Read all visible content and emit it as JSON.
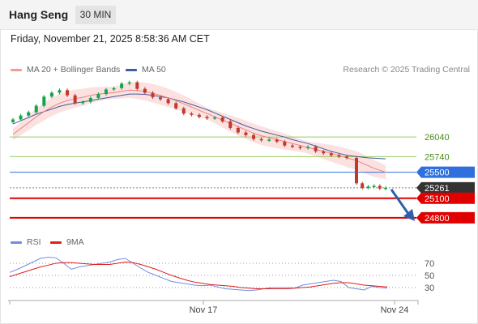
{
  "header": {
    "title": "Hang Seng",
    "timeframe": "30 MIN"
  },
  "timestamp": "Friday, November 21, 2025 8:58:36 AM CET",
  "legend": {
    "ma20_bb": "MA 20 + Bollinger Bands",
    "ma50": "MA 50",
    "rsi": "RSI",
    "ma9": "9MA"
  },
  "credit": "Research © 2025 Trading Central",
  "colors": {
    "up_candle": "#16a34a",
    "down_candle": "#c0392b",
    "bollinger_fill": "#fbd9d9",
    "ma20": "#f08080",
    "ma50": "#3f5e9c",
    "resistance_green": "#9acd66",
    "level_blue": "#2f6fde",
    "support_red": "#e00000",
    "price_label": "#333333",
    "rsi_line": "#6d8fe0",
    "rsi_ma": "#e11d1d",
    "arrow": "#2f5fa8"
  },
  "chart_data": [
    {
      "type": "candlestick",
      "title": "Hang Seng",
      "x_ticks": [
        "Nov 17",
        "Nov 24"
      ],
      "ylim": [
        24600,
        26950
      ],
      "levels": [
        {
          "value": 26040,
          "label": "26040",
          "style": "resistance"
        },
        {
          "value": 25740,
          "label": "25740",
          "style": "resistance"
        },
        {
          "value": 25500,
          "label": "25500",
          "style": "pivot"
        },
        {
          "value": 25261,
          "label": "25261",
          "style": "last_price"
        },
        {
          "value": 25100,
          "label": "25100",
          "style": "support"
        },
        {
          "value": 24800,
          "label": "24800",
          "style": "support"
        }
      ],
      "forecast_arrow": {
        "from": 25261,
        "to": 24900
      },
      "series": [
        {
          "name": "Hang Seng",
          "values": [
            26310,
            26370,
            26420,
            26520,
            26660,
            26720,
            26760,
            26680,
            26560,
            26580,
            26640,
            26700,
            26770,
            26790,
            26860,
            26880,
            26780,
            26720,
            26650,
            26620,
            26560,
            26480,
            26400,
            26380,
            26350,
            26330,
            26340,
            26280,
            26180,
            26110,
            26070,
            26010,
            25990,
            26000,
            25970,
            25910,
            25890,
            25870,
            25890,
            25820,
            25790,
            25760,
            25740,
            25720,
            25330,
            25260,
            25280,
            25290,
            25250,
            25261
          ]
        },
        {
          "name": "MA 20",
          "values": [
            26080,
            26170,
            26260,
            26350,
            26430,
            26500,
            26560,
            26600,
            26630,
            26650,
            26680,
            26700,
            26710,
            26720,
            26740,
            26760,
            26755,
            26740,
            26710,
            26680,
            26640,
            26600,
            26550,
            26500,
            26450,
            26400,
            26350,
            26300,
            26250,
            26200,
            26150,
            26100,
            26060,
            26030,
            26000,
            25970,
            25940,
            25910,
            25880,
            25850,
            25820,
            25790,
            25760,
            25720,
            25680,
            25640,
            25600,
            25560,
            25530,
            25500
          ]
        },
        {
          "name": "MA 50",
          "values": [
            26240,
            26290,
            26340,
            26390,
            26430,
            26470,
            26510,
            26540,
            26560,
            26580,
            26600,
            26620,
            26640,
            26660,
            26680,
            26700,
            26700,
            26695,
            26680,
            26660,
            26640,
            26610,
            26580,
            26540,
            26500,
            26460,
            26410,
            26360,
            26310,
            26260,
            26210,
            26170,
            26130,
            26100,
            26070,
            26040,
            26000,
            25970,
            25940,
            25900,
            25860,
            25820,
            25790,
            25760,
            25740,
            25730,
            25720,
            25715,
            25710,
            25705
          ]
        }
      ]
    },
    {
      "type": "line",
      "title": "RSI",
      "y_ticks": [
        70,
        50,
        30
      ],
      "ylim": [
        10,
        90
      ],
      "series": [
        {
          "name": "RSI",
          "values": [
            55,
            60,
            66,
            72,
            78,
            80,
            79,
            70,
            60,
            64,
            66,
            68,
            70,
            72,
            76,
            78,
            70,
            62,
            55,
            50,
            45,
            40,
            38,
            36,
            34,
            33,
            34,
            31,
            28,
            27,
            26,
            25,
            26,
            28,
            30,
            30,
            30,
            29,
            34,
            36,
            38,
            40,
            42,
            40,
            30,
            28,
            26,
            32,
            30,
            29
          ]
        },
        {
          "name": "9MA",
          "values": [
            48,
            52,
            56,
            60,
            64,
            67,
            70,
            71,
            71,
            70,
            69,
            68,
            68,
            68,
            70,
            72,
            71,
            68,
            64,
            60,
            55,
            50,
            46,
            42,
            39,
            37,
            35,
            34,
            33,
            32,
            30,
            29,
            28,
            28,
            28,
            28,
            28,
            29,
            30,
            31,
            33,
            35,
            37,
            38,
            38,
            36,
            34,
            33,
            32,
            31
          ]
        }
      ]
    }
  ]
}
